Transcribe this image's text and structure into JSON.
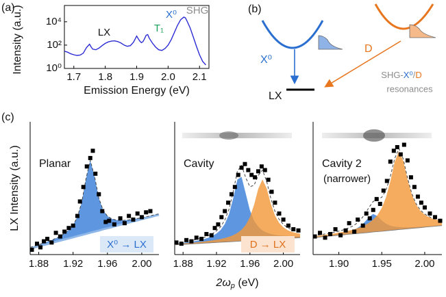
{
  "panel_labels": [
    "(a)",
    "(b)",
    "(c)"
  ],
  "diagram": {
    "exciton": "X⁰",
    "defect": "D",
    "final_state": "LX",
    "resonance_label": [
      "SHG-",
      "X⁰",
      "/",
      "D"
    ],
    "resonance_label_line2": "resonances"
  },
  "chart_data": [
    {
      "type": "line",
      "log_y": true,
      "xlabel": "Emission Energy (eV)",
      "ylabel": "Intensity (a.u.)",
      "xlim": [
        1.67,
        2.13
      ],
      "ylim": [
        1,
        250000
      ],
      "xticks": [
        1.7,
        1.8,
        1.9,
        {
          "value": 2,
          "label": "2.0"
        },
        2.1
      ],
      "yticks": [
        {
          "value": 1,
          "label": "10⁰"
        },
        {
          "value": 100,
          "label": "10²"
        },
        {
          "value": 10000,
          "label": "10⁴"
        }
      ],
      "x": [
        1.67,
        1.68,
        1.69,
        1.7,
        1.71,
        1.72,
        1.73,
        1.74,
        1.75,
        1.755,
        1.76,
        1.77,
        1.78,
        1.79,
        1.8,
        1.81,
        1.82,
        1.83,
        1.84,
        1.85,
        1.86,
        1.87,
        1.88,
        1.89,
        1.9,
        1.905,
        1.91,
        1.915,
        1.92,
        1.925,
        1.93,
        1.935,
        1.94,
        1.95,
        1.96,
        1.97,
        1.98,
        1.99,
        2.0,
        2.01,
        2.02,
        2.03,
        2.04,
        2.05,
        2.055,
        2.06,
        2.07,
        2.08,
        2.09,
        2.1,
        2.11,
        2.12
      ],
      "series": [
        {
          "color": "#2b2bd6",
          "values": [
            30,
            25,
            18,
            15,
            13,
            14,
            20,
            60,
            120,
            70,
            45,
            40,
            55,
            90,
            140,
            190,
            220,
            230,
            200,
            150,
            100,
            80,
            90,
            180,
            600,
            350,
            220,
            160,
            200,
            350,
            700,
            800,
            400,
            150,
            70,
            40,
            35,
            50,
            100,
            300,
            1200,
            5000,
            15000,
            25000,
            22000,
            12000,
            3000,
            500,
            80,
            15,
            4,
            2
          ]
        }
      ],
      "annotations": [
        {
          "text": "LX",
          "color": "#111111"
        },
        {
          "text": "T₁",
          "color": "#1aa05a"
        },
        {
          "text": "X⁰",
          "color": "#2a6fd0"
        },
        {
          "text": "SHG",
          "color": "#8c8c8c"
        }
      ]
    },
    {
      "type": "fit",
      "title": "Planar",
      "ylabel": "LX Intensity (a.u.)",
      "tag": "X⁰ → LX",
      "tag_color": "#2a6fd0",
      "tag_background": "#dbe8f8",
      "xlim": [
        1.87,
        2.02
      ],
      "ylim": [
        0,
        11
      ],
      "xticks": [
        1.88,
        1.92,
        1.96,
        {
          "value": 2,
          "label": "2.00"
        }
      ],
      "fit_x": [
        1.87,
        1.875,
        1.88,
        1.885,
        1.89,
        1.895,
        1.9,
        1.905,
        1.91,
        1.915,
        1.92,
        1.925,
        1.93,
        1.935,
        1.94,
        1.945,
        1.95,
        1.955,
        1.96,
        1.965,
        1.97,
        1.975,
        1.98,
        1.985,
        1.99,
        1.995,
        2.0,
        2.005,
        2.01,
        2.015,
        2.02
      ],
      "baseline": [
        0.5,
        0.59,
        0.69,
        0.78,
        0.87,
        0.97,
        1.06,
        1.15,
        1.25,
        1.34,
        1.43,
        1.53,
        1.62,
        1.71,
        1.81,
        1.9,
        1.99,
        2.09,
        2.18,
        2.27,
        2.37,
        2.46,
        2.55,
        2.65,
        2.74,
        2.83,
        2.93,
        3.02,
        3.11,
        3.21,
        3.3
      ],
      "baseline_color": "#8fb8e8",
      "components": [
        {
          "color": "#3a80d8",
          "values": [
            0.1,
            0.11,
            0.13,
            0.16,
            0.19,
            0.23,
            0.29,
            0.37,
            0.5,
            0.69,
            1.01,
            1.59,
            2.69,
            4.58,
            6,
            4.58,
            2.69,
            1.59,
            1.01,
            0.69,
            0.5,
            0.37,
            0.29,
            0.23,
            0.19,
            0.16,
            0.13,
            0.11,
            0.1,
            0.09,
            0.08
          ]
        }
      ],
      "points": {
        "x": [
          1.872,
          1.878,
          1.882,
          1.886,
          1.89,
          1.895,
          1.9,
          1.905,
          1.91,
          1.915,
          1.92,
          1.925,
          1.928,
          1.932,
          1.936,
          1.94,
          1.943,
          1.946,
          1.95,
          1.954,
          1.958,
          1.962,
          1.968,
          1.975,
          1.98,
          1.985,
          1.99,
          1.995,
          2.0,
          2.005,
          2.01
        ],
        "values": [
          0.4,
          0.9,
          0.6,
          1.1,
          1.3,
          1.0,
          1.8,
          1.5,
          1.9,
          2.2,
          2.4,
          3.2,
          4.4,
          5.6,
          7.3,
          8.0,
          8.6,
          6.7,
          5.0,
          3.6,
          2.7,
          2.8,
          2.5,
          3.0,
          2.6,
          3.2,
          2.9,
          3.4,
          3.1,
          3.5,
          3.6
        ]
      }
    },
    {
      "type": "fit",
      "title": "Cavity",
      "xlabel": {
        "main": "2ω",
        "sub": "p",
        "unit": " (eV)"
      },
      "tag": "D → LX",
      "tag_color": "#e0701a",
      "tag_background": "#fbe3cf",
      "xlim": [
        1.87,
        2.02
      ],
      "ylim": [
        0,
        11
      ],
      "xticks": [
        1.88,
        1.92,
        1.96,
        {
          "value": 2,
          "label": "2.00"
        }
      ],
      "fit_x": [
        1.87,
        1.875,
        1.88,
        1.885,
        1.89,
        1.895,
        1.9,
        1.905,
        1.91,
        1.915,
        1.92,
        1.925,
        1.93,
        1.935,
        1.94,
        1.945,
        1.95,
        1.955,
        1.96,
        1.965,
        1.97,
        1.975,
        1.98,
        1.985,
        1.99,
        1.995,
        2.0,
        2.005,
        2.01,
        2.015,
        2.02
      ],
      "baseline": [
        0.8,
        0.82,
        0.84,
        0.86,
        0.88,
        0.9,
        0.92,
        0.94,
        0.96,
        0.98,
        1.0,
        1.02,
        1.04,
        1.06,
        1.08,
        1.1,
        1.12,
        1.14,
        1.16,
        1.18,
        1.2,
        1.22,
        1.24,
        1.26,
        1.28,
        1.3,
        1.32,
        1.34,
        1.36,
        1.38,
        1.4
      ],
      "components": [
        {
          "color": "#3a80d8",
          "values": [
            0.11,
            0.12,
            0.14,
            0.16,
            0.19,
            0.23,
            0.28,
            0.34,
            0.43,
            0.55,
            0.74,
            1.02,
            1.5,
            2.29,
            3.6,
            5.12,
            5.32,
            3.91,
            2.51,
            1.62,
            1.1,
            0.78,
            0.58,
            0.45,
            0.35,
            0.29,
            0.24,
            0.2,
            0.17,
            0.14,
            0.13
          ]
        },
        {
          "color": "#f39a3a",
          "values": [
            0.06,
            0.07,
            0.08,
            0.09,
            0.1,
            0.11,
            0.13,
            0.14,
            0.17,
            0.19,
            0.23,
            0.27,
            0.33,
            0.41,
            0.53,
            0.69,
            0.94,
            1.32,
            1.95,
            2.95,
            4.26,
            5,
            4.26,
            2.95,
            1.95,
            1.32,
            0.94,
            0.69,
            0.53,
            0.41,
            0.33
          ]
        }
      ],
      "points": {
        "x": [
          1.872,
          1.878,
          1.884,
          1.89,
          1.896,
          1.902,
          1.908,
          1.914,
          1.918,
          1.922,
          1.926,
          1.93,
          1.934,
          1.938,
          1.942,
          1.946,
          1.95,
          1.954,
          1.958,
          1.962,
          1.966,
          1.97,
          1.974,
          1.978,
          1.982,
          1.986,
          1.99,
          1.995,
          2.0,
          2.006,
          2.012,
          2.018
        ],
        "values": [
          1.0,
          0.9,
          1.2,
          1.1,
          1.4,
          1.3,
          1.7,
          1.6,
          2.2,
          2.5,
          3.1,
          3.6,
          4.3,
          5.0,
          5.6,
          6.6,
          7.2,
          7.5,
          7.0,
          6.6,
          6.4,
          6.9,
          7.3,
          7.0,
          6.2,
          5.2,
          4.3,
          3.4,
          2.9,
          2.4,
          2.1,
          2.0
        ]
      }
    },
    {
      "type": "fit",
      "title": "Cavity 2",
      "subtitle": "(narrower)",
      "xlim": [
        1.87,
        2.02
      ],
      "ylim": [
        0,
        11
      ],
      "xticks": [
        {
          "value": 1.9,
          "label": "1.90"
        },
        1.95,
        {
          "value": 2,
          "label": "2.00"
        }
      ],
      "fit_x": [
        1.87,
        1.875,
        1.88,
        1.885,
        1.89,
        1.895,
        1.9,
        1.905,
        1.91,
        1.915,
        1.92,
        1.925,
        1.93,
        1.935,
        1.94,
        1.945,
        1.95,
        1.955,
        1.96,
        1.965,
        1.97,
        1.975,
        1.98,
        1.985,
        1.99,
        1.995,
        2.0,
        2.005,
        2.01,
        2.015,
        2.02
      ],
      "baseline": [
        1.4,
        1.43,
        1.47,
        1.5,
        1.53,
        1.57,
        1.6,
        1.63,
        1.67,
        1.7,
        1.73,
        1.77,
        1.8,
        1.83,
        1.87,
        1.9,
        1.93,
        1.97,
        2.0,
        2.03,
        2.07,
        2.1,
        2.13,
        2.17,
        2.2,
        2.23,
        2.27,
        2.3,
        2.33,
        2.37,
        2.4
      ],
      "components": [
        {
          "color": "#3a80d8",
          "values": [
            0.04,
            0.05,
            0.06,
            0.07,
            0.08,
            0.1,
            0.12,
            0.16,
            0.21,
            0.28,
            0.4,
            0.59,
            0.89,
            1.28,
            1.5,
            1.28,
            0.89,
            0.59,
            0.4,
            0.28,
            0.21,
            0.16,
            0.12,
            0.1,
            0.08,
            0.07,
            0.06,
            0.05,
            0.04,
            0.04,
            0.03
          ]
        },
        {
          "color": "#f39a3a",
          "values": [
            0.11,
            0.12,
            0.13,
            0.15,
            0.17,
            0.19,
            0.22,
            0.25,
            0.29,
            0.34,
            0.41,
            0.5,
            0.62,
            0.79,
            1.03,
            1.38,
            1.93,
            2.79,
            4.08,
            5.66,
            6.5,
            5.66,
            4.08,
            2.79,
            1.93,
            1.38,
            1.03,
            0.79,
            0.62,
            0.5,
            0.41
          ]
        }
      ],
      "points": {
        "x": [
          1.872,
          1.878,
          1.884,
          1.89,
          1.896,
          1.902,
          1.908,
          1.912,
          1.918,
          1.922,
          1.928,
          1.932,
          1.936,
          1.94,
          1.944,
          1.948,
          1.952,
          1.956,
          1.96,
          1.964,
          1.968,
          1.972,
          1.976,
          1.98,
          1.984,
          1.988,
          1.992,
          1.996,
          2.0,
          2.006,
          2.012,
          2.018
        ],
        "values": [
          1.5,
          1.8,
          1.4,
          1.7,
          2.1,
          1.6,
          2.0,
          2.6,
          1.9,
          2.9,
          2.4,
          3.4,
          3.0,
          3.7,
          4.6,
          4.2,
          5.3,
          6.1,
          7.7,
          8.6,
          8.9,
          8.3,
          9.1,
          7.8,
          6.4,
          5.6,
          4.8,
          4.3,
          3.9,
          3.4,
          3.1,
          2.8
        ]
      }
    }
  ]
}
